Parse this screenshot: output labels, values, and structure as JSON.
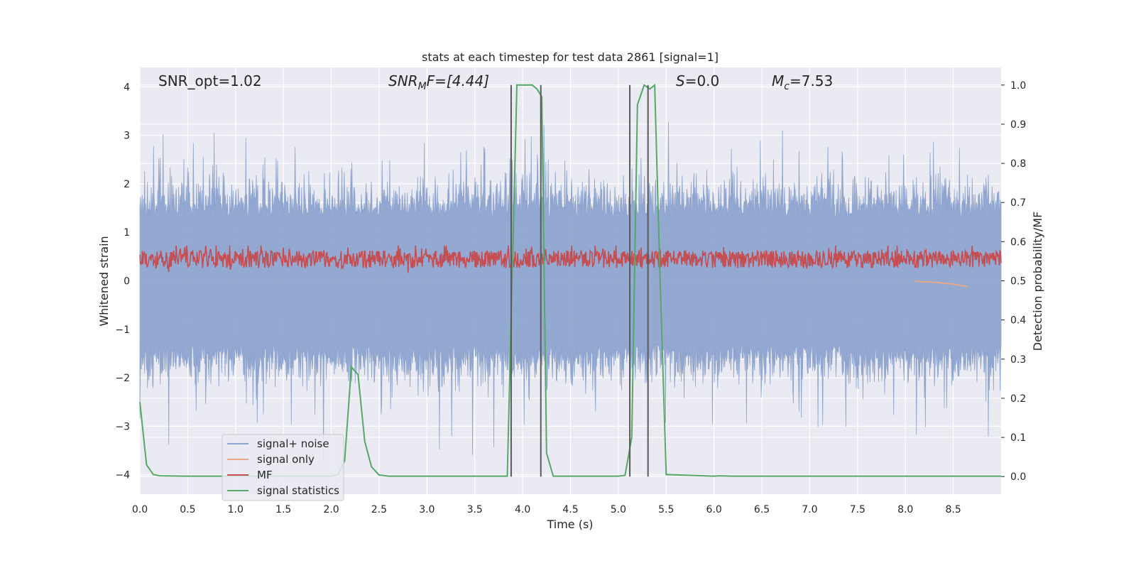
{
  "chart_data": {
    "type": "line",
    "title": "stats at each timestep for test data 2861 [signal=1]",
    "xlabel": "Time (s)",
    "ylabel": "Whitened strain",
    "y2label": "Detection probability/MF",
    "xlim": [
      0.0,
      9.0
    ],
    "ylim": [
      -4.4,
      4.4
    ],
    "y2lim": [
      -0.045,
      1.045
    ],
    "x_ticks": [
      "0.0",
      "0.5",
      "1.0",
      "1.5",
      "2.0",
      "2.5",
      "3.0",
      "3.5",
      "4.0",
      "4.5",
      "5.0",
      "5.5",
      "6.0",
      "6.5",
      "7.0",
      "7.5",
      "8.0",
      "8.5"
    ],
    "y_ticks": [
      "4",
      "3",
      "2",
      "1",
      "0",
      "−1",
      "−2",
      "−3",
      "−4"
    ],
    "y2_ticks": [
      "1.0",
      "0.9",
      "0.8",
      "0.7",
      "0.6",
      "0.5",
      "0.4",
      "0.3",
      "0.2",
      "0.1",
      "0.0"
    ],
    "grid": true,
    "legend_position": "lower-left",
    "annotations": {
      "snr_opt": "SNR_opt=1.02",
      "snr_mf_main": "SNR",
      "snr_mf_sub": "M",
      "snr_mf_rest": "F=[4.44]",
      "s_main": "S",
      "s_rest": "=0.0",
      "mc_main": "M",
      "mc_sub": "c",
      "mc_rest": "=7.53"
    },
    "series": [
      {
        "name": "signal+ noise",
        "color": "#8fa5cf",
        "description_amplitude": [
          -3.9,
          4.0
        ]
      },
      {
        "name": "signal only",
        "color": "#e8a888",
        "values_x": [
          8.1,
          8.2,
          8.3,
          8.4,
          8.5,
          8.6,
          8.65
        ],
        "values_y": [
          -0.01,
          -0.02,
          -0.03,
          -0.05,
          -0.07,
          -0.1,
          -0.12
        ]
      },
      {
        "name": "MF",
        "color": "#c44e52",
        "y_range": [
          0.0,
          0.95
        ]
      },
      {
        "name": "signal statistics",
        "color": "#55a868",
        "x": [
          0.0,
          0.07,
          0.14,
          0.21,
          0.5,
          1.0,
          1.5,
          2.0,
          2.07,
          2.14,
          2.21,
          2.28,
          2.35,
          2.42,
          2.5,
          2.6,
          3.0,
          3.5,
          3.8,
          3.84,
          3.9,
          3.94,
          4.0,
          4.05,
          4.1,
          4.15,
          4.2,
          4.25,
          4.32,
          4.5,
          5.0,
          5.07,
          5.14,
          5.2,
          5.27,
          5.33,
          5.38,
          5.43,
          5.5,
          6.0,
          6.05,
          6.2,
          7.0,
          8.0,
          9.0
        ],
        "y": [
          0.19,
          0.03,
          0.005,
          0.002,
          0.001,
          0.001,
          0.001,
          0.001,
          0.005,
          0.04,
          0.28,
          0.26,
          0.09,
          0.025,
          0.004,
          0.001,
          0.001,
          0.001,
          0.001,
          0.001,
          0.6,
          1.0,
          1.0,
          1.0,
          1.0,
          0.99,
          0.97,
          0.06,
          0.001,
          0.001,
          0.001,
          0.003,
          0.1,
          0.95,
          1.0,
          0.99,
          1.0,
          0.56,
          0.005,
          0.001,
          0.002,
          0.001,
          0.001,
          0.001,
          0.001
        ]
      }
    ],
    "vertical_markers_x": [
      3.88,
      4.19,
      5.12,
      5.31
    ]
  }
}
